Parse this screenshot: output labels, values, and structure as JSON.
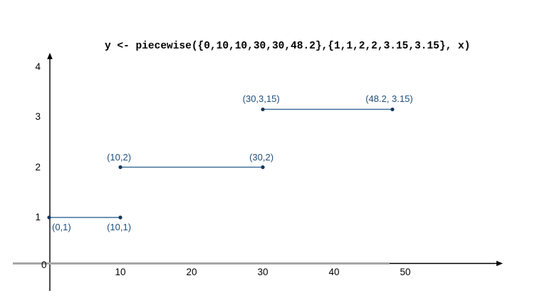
{
  "chart_data": {
    "type": "line",
    "title": "y <- piecewise({0,10,10,30,30,48.2},{1,1,2,2,3.15,3.15}, x)",
    "xlabel": "",
    "ylabel": "",
    "xlim": [
      0,
      63
    ],
    "ylim": [
      0,
      4.3
    ],
    "grid": false,
    "legend": false,
    "x_ticks": [
      10,
      20,
      30,
      40,
      50
    ],
    "y_ticks": [
      1,
      2,
      3,
      4
    ],
    "origin_label": "0",
    "colors": {
      "segment_line": "#41719C",
      "point_dot": "#17375E",
      "label_text": "#1F4E79",
      "axis_black": "#000000",
      "axis_gray": "#A6A6A6",
      "title_text": "#000000"
    },
    "segments": [
      {
        "name": "segment-1",
        "y": 1,
        "x_start": 0,
        "x_end": 10,
        "start_label": "(0,1)",
        "end_label": "(10,1)",
        "label_position": "below"
      },
      {
        "name": "segment-2",
        "y": 2,
        "x_start": 10,
        "x_end": 30,
        "start_label": "(10,2)",
        "end_label": "(30,2)",
        "label_position": "above"
      },
      {
        "name": "segment-3",
        "y": 3.15,
        "x_start": 30,
        "x_end": 48.2,
        "start_label": "(30,3,15)",
        "end_label": "(48.2, 3.15)",
        "label_position": "above"
      }
    ]
  }
}
